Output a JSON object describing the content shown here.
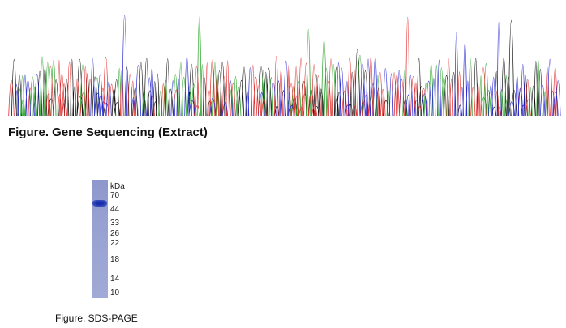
{
  "figures": [
    {
      "caption": "Figure. Gene Sequencing (Extract)"
    },
    {
      "caption": "Figure. SDS-PAGE",
      "unit_label": "kDa",
      "markers": [
        70,
        44,
        33,
        26,
        22,
        18,
        14,
        10
      ]
    }
  ]
}
